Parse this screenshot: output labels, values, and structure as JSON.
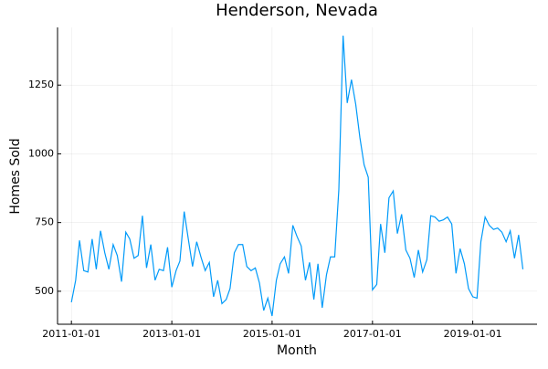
{
  "chart_data": {
    "type": "line",
    "title": "Henderson, Nevada",
    "x_label": "Month",
    "y_label": "Homes Sold",
    "color": "#009af9",
    "grid": true,
    "x": [
      "2011-01-01",
      "2011-02-01",
      "2011-03-01",
      "2011-04-01",
      "2011-05-01",
      "2011-06-01",
      "2011-07-01",
      "2011-08-01",
      "2011-09-01",
      "2011-10-01",
      "2011-11-01",
      "2011-12-01",
      "2012-01-01",
      "2012-02-01",
      "2012-03-01",
      "2012-04-01",
      "2012-05-01",
      "2012-06-01",
      "2012-07-01",
      "2012-08-01",
      "2012-09-01",
      "2012-10-01",
      "2012-11-01",
      "2012-12-01",
      "2013-01-01",
      "2013-02-01",
      "2013-03-01",
      "2013-04-01",
      "2013-05-01",
      "2013-06-01",
      "2013-07-01",
      "2013-08-01",
      "2013-09-01",
      "2013-10-01",
      "2013-11-01",
      "2013-12-01",
      "2014-01-01",
      "2014-02-01",
      "2014-03-01",
      "2014-04-01",
      "2014-05-01",
      "2014-06-01",
      "2014-07-01",
      "2014-08-01",
      "2014-09-01",
      "2014-10-01",
      "2014-11-01",
      "2014-12-01",
      "2015-01-01",
      "2015-02-01",
      "2015-03-01",
      "2015-04-01",
      "2015-05-01",
      "2015-06-01",
      "2015-07-01",
      "2015-08-01",
      "2015-09-01",
      "2015-10-01",
      "2015-11-01",
      "2015-12-01",
      "2016-01-01",
      "2016-02-01",
      "2016-03-01",
      "2016-04-01",
      "2016-05-01",
      "2016-06-01",
      "2016-07-01",
      "2016-08-01",
      "2016-09-01",
      "2016-10-01",
      "2016-11-01",
      "2016-12-01",
      "2017-01-01",
      "2017-02-01",
      "2017-03-01",
      "2017-04-01",
      "2017-05-01",
      "2017-06-01",
      "2017-07-01",
      "2017-08-01",
      "2017-09-01",
      "2017-10-01",
      "2017-11-01",
      "2017-12-01",
      "2018-01-01",
      "2018-02-01",
      "2018-03-01",
      "2018-04-01",
      "2018-05-01",
      "2018-06-01",
      "2018-07-01",
      "2018-08-01",
      "2018-09-01",
      "2018-10-01",
      "2018-11-01",
      "2018-12-01",
      "2019-01-01",
      "2019-02-01",
      "2019-03-01",
      "2019-04-01",
      "2019-05-01",
      "2019-06-01",
      "2019-07-01",
      "2019-08-01",
      "2019-09-01",
      "2019-10-01",
      "2019-11-01",
      "2019-12-01",
      "2020-01-01"
    ],
    "values": [
      460,
      540,
      685,
      575,
      570,
      690,
      580,
      720,
      640,
      580,
      670,
      630,
      535,
      715,
      690,
      620,
      630,
      775,
      585,
      670,
      540,
      580,
      575,
      660,
      515,
      575,
      610,
      790,
      690,
      590,
      680,
      625,
      575,
      605,
      480,
      540,
      455,
      470,
      510,
      640,
      670,
      670,
      590,
      575,
      585,
      530,
      430,
      475,
      410,
      540,
      600,
      625,
      565,
      740,
      700,
      665,
      540,
      605,
      470,
      600,
      440,
      560,
      625,
      625,
      870,
      1430,
      1185,
      1270,
      1180,
      1060,
      960,
      915,
      505,
      525,
      745,
      640,
      840,
      865,
      710,
      780,
      650,
      620,
      550,
      650,
      570,
      615,
      775,
      770,
      755,
      760,
      770,
      745,
      565,
      655,
      600,
      510,
      480,
      475,
      680,
      770,
      740,
      725,
      730,
      715,
      680,
      720,
      620,
      705,
      580
    ],
    "xlim": [
      "2010-09-22",
      "2020-04-13"
    ],
    "xticks": [
      "2011-01-01",
      "2013-01-01",
      "2015-01-01",
      "2017-01-01",
      "2019-01-01"
    ],
    "ylim": [
      380,
      1460
    ],
    "yticks": [
      500,
      750,
      1000,
      1250
    ]
  }
}
